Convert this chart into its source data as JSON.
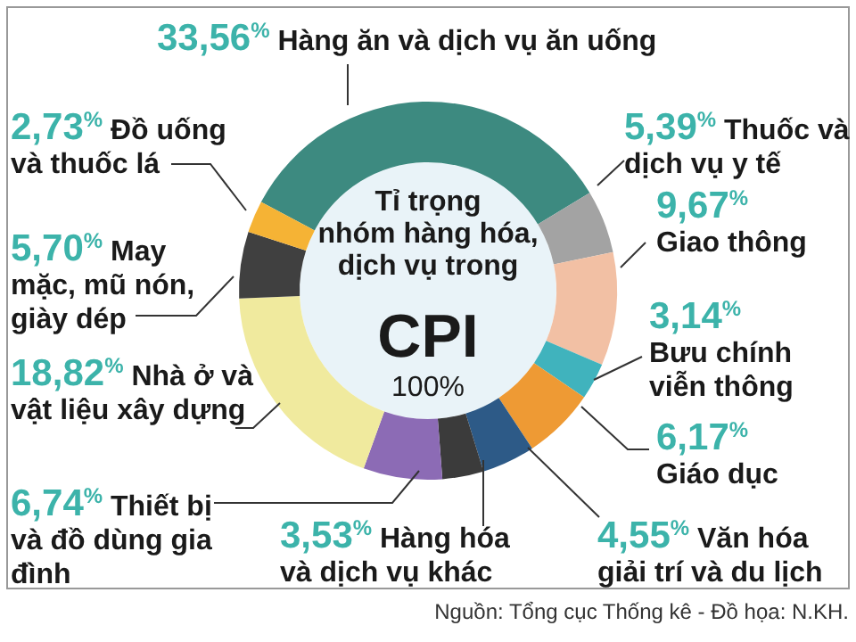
{
  "chart_data": {
    "type": "donut",
    "title": "Tỉ trọng nhóm hàng hóa, dịch vụ trong",
    "subtitle": "CPI",
    "annotations": [
      "100%",
      "Nguồn: Tổng cục Thống kê - Đồ họa: N.KH."
    ],
    "categories": [
      "Hàng ăn và dịch vụ ăn uống",
      "Thuốc và dịch vụ y tế",
      "Giao thông",
      "Bưu chính viễn thông",
      "Giáo dục",
      "Văn hóa giải trí và du lịch",
      "Hàng hóa và dịch vụ khác",
      "Thiết bị và đồ dùng gia đình",
      "Nhà ở và vật liệu xây dựng",
      "May mặc, mũ nón, giày dép",
      "Đồ uống và thuốc lá"
    ],
    "values": [
      33.56,
      5.39,
      9.67,
      3.14,
      6.17,
      4.55,
      3.53,
      6.74,
      18.82,
      5.7,
      2.73
    ],
    "value_labels": [
      "33,56$^{%}$",
      "5,39$^{%}$",
      "9,67$^{%}$",
      "3,14$^{%}$",
      "6,17$^{%}$",
      "4,55$^{%}$",
      "3,53$^{%}$",
      "6,74$^{%}$",
      "18,82$^{%}$",
      "5,70$^{%}$",
      "2,73$^{%}$"
    ],
    "colors": [
      "#3d8a80",
      "#a3a3a3",
      "#f2c0a4",
      "#40b3bd",
      "#ee9a34",
      "#2d5a87",
      "#3b3b3b",
      "#8c6bb5",
      "#f0ea9e",
      "#404040",
      "#f5b335"
    ]
  }
}
